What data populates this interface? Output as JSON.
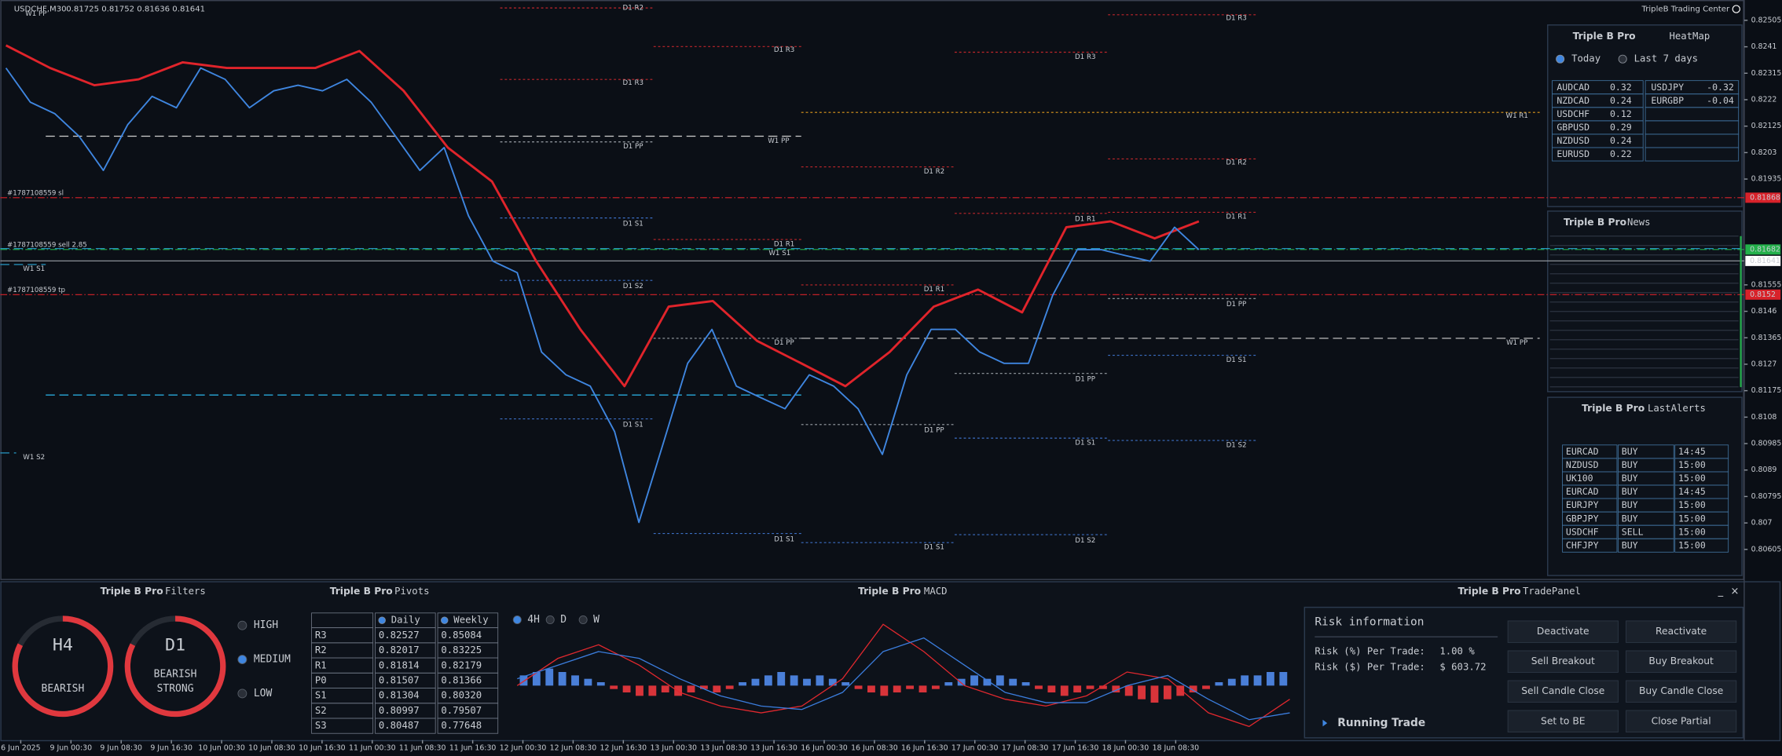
{
  "header": {
    "symbol": "USDCHF,M30",
    "ohlc": "0.81725 0.81752 0.81636 0.81641",
    "brand": "TripleB Trading Center"
  },
  "price_chart": {
    "type": "line",
    "ylim": [
      0.80499,
      0.82578
    ],
    "yticks": [
      0.82505,
      0.8241,
      0.82315,
      0.8222,
      0.82125,
      0.8203,
      0.81935,
      0.81555,
      0.8146,
      0.81365,
      0.8127,
      0.81175,
      0.8108,
      0.80985,
      0.8089,
      0.80795,
      0.807,
      0.80605
    ],
    "x_labels": [
      "6 Jun 2025",
      "9 Jun 00:30",
      "9 Jun 08:30",
      "9 Jun 16:30",
      "10 Jun 00:30",
      "10 Jun 08:30",
      "10 Jun 16:30",
      "11 Jun 00:30",
      "11 Jun 08:30",
      "11 Jun 16:30",
      "12 Jun 00:30",
      "12 Jun 08:30",
      "12 Jun 16:30",
      "13 Jun 00:30",
      "13 Jun 08:30",
      "13 Jun 16:30",
      "16 Jun 00:30",
      "16 Jun 08:30",
      "16 Jun 16:30",
      "17 Jun 00:30",
      "17 Jun 08:30",
      "17 Jun 16:30",
      "18 Jun 00:30",
      "18 Jun 08:30"
    ],
    "close": [
      0.82334,
      0.82211,
      0.8217,
      0.82089,
      0.81966,
      0.8213,
      0.82232,
      0.82191,
      0.82334,
      0.82293,
      0.82191,
      0.82252,
      0.82272,
      0.82252,
      0.82293,
      0.82211,
      0.82089,
      0.81966,
      0.82048,
      0.81803,
      0.8164,
      0.81599,
      0.81314,
      0.81232,
      0.81191,
      0.81028,
      0.80702,
      0.80987,
      0.81273,
      0.81395,
      0.81191,
      0.8115,
      0.8111,
      0.81232,
      0.81191,
      0.8111,
      0.80946,
      0.81232,
      0.81395,
      0.81395,
      0.81314,
      0.81273,
      0.81273,
      0.81518,
      0.81681,
      0.81681,
      0.8166,
      0.8164,
      0.81762,
      0.81681
    ],
    "close_color": "#3f86e0",
    "ma": [
      0.82415,
      0.82334,
      0.82272,
      0.82293,
      0.82354,
      0.82334,
      0.82334,
      0.82334,
      0.82395,
      0.82252,
      0.82048,
      0.81926,
      0.8164,
      0.81395,
      0.81191,
      0.81477,
      0.81497,
      0.81354,
      0.81273,
      0.81191,
      0.81314,
      0.81477,
      0.81538,
      0.81456,
      0.81762,
      0.81783,
      0.81722,
      0.81783
    ],
    "ma_color": "#e0242b",
    "marked_prices": [
      {
        "value": 0.81868,
        "color": "#d8222a"
      },
      {
        "value": 0.81682,
        "color": "#23b04a"
      },
      {
        "value": 0.81641,
        "color": "#ffffff"
      },
      {
        "value": 0.8152,
        "color": "#d8222a"
      }
    ]
  },
  "orders": [
    "#1787108559 sl",
    "#1787108559 sell 2.85",
    "#1787108559 tp"
  ],
  "levels": [
    "W1 PP",
    "D1 R2",
    "D1 R3",
    "D1 R3",
    "D1 R3",
    "D1 R3",
    "W1 R1",
    "D1 R2",
    "D1 R2",
    "W1 PP",
    "D1 PP",
    "D1 S1",
    "D1 R1",
    "D1 R1",
    "D1 R1",
    "W1 S1",
    "W1 S1",
    "D1 S2",
    "D1 R1",
    "D1 PP",
    "D1 PP",
    "W1 PP",
    "D1 S1",
    "D1 PP",
    "D1 S1",
    "D1 PP",
    "D1 S1",
    "D1 S2",
    "W1 S2",
    "D1 S1",
    "D1 S2",
    "D1 S1"
  ],
  "heatmap": {
    "brand": "Triple B Pro",
    "title": "HeatMap",
    "tabs": [
      "Today",
      "Last 7 days"
    ],
    "left": [
      [
        "AUDCAD",
        "0.32"
      ],
      [
        "NZDCAD",
        "0.24"
      ],
      [
        "USDCHF",
        "0.12"
      ],
      [
        "GBPUSD",
        "0.29"
      ],
      [
        "NZDUSD",
        "0.24"
      ],
      [
        "EURUSD",
        "0.22"
      ]
    ],
    "right": [
      [
        "USDJPY",
        "-0.32"
      ],
      [
        "EURGBP",
        "-0.04"
      ]
    ]
  },
  "news": {
    "brand": "Triple B Pro",
    "title": "News"
  },
  "alerts": {
    "brand": "Triple B Pro",
    "title": "LastAlerts",
    "rows": [
      [
        "EURCAD",
        "BUY",
        "14:45"
      ],
      [
        "NZDUSD",
        "BUY",
        "15:00"
      ],
      [
        "UK100",
        "BUY",
        "15:00"
      ],
      [
        "EURCAD",
        "BUY",
        "14:45"
      ],
      [
        "EURJPY",
        "BUY",
        "15:00"
      ],
      [
        "GBPJPY",
        "BUY",
        "15:00"
      ],
      [
        "USDCHF",
        "SELL",
        "15:00"
      ],
      [
        "CHFJPY",
        "BUY",
        "15:00"
      ]
    ]
  },
  "filters": {
    "brand": "Triple B Pro",
    "title": "Filters",
    "gauges": [
      {
        "tf": "H4",
        "state": [
          "BEARISH"
        ]
      },
      {
        "tf": "D1",
        "state": [
          "BEARISH",
          "STRONG"
        ]
      }
    ],
    "levels": [
      "HIGH",
      "MEDIUM",
      "LOW"
    ]
  },
  "pivots": {
    "brand": "Triple B Pro",
    "title": "Pivots",
    "columns": [
      "Daily",
      "Weekly"
    ],
    "rows": [
      [
        "R3",
        "0.82527",
        "0.85084"
      ],
      [
        "R2",
        "0.82017",
        "0.83225"
      ],
      [
        "R1",
        "0.81814",
        "0.82179"
      ],
      [
        "P0",
        "0.81507",
        "0.81366"
      ],
      [
        "S1",
        "0.81304",
        "0.80320"
      ],
      [
        "S2",
        "0.80997",
        "0.79507"
      ],
      [
        "S3",
        "0.80487",
        "0.77648"
      ]
    ]
  },
  "macd": {
    "brand": "Triple B Pro",
    "title": "MACD",
    "timeframes": [
      "4H",
      "D",
      "W"
    ],
    "histogram": [
      3,
      4,
      5,
      4,
      3,
      2,
      1,
      -1,
      -2,
      -3,
      -3,
      -2,
      -3,
      -2,
      -1,
      -2,
      -1,
      1,
      2,
      3,
      4,
      3,
      2,
      3,
      2,
      1,
      -1,
      -2,
      -3,
      -2,
      -1,
      -2,
      -1,
      1,
      2,
      3,
      2,
      3,
      2,
      1,
      -1,
      -2,
      -3,
      -2,
      -1,
      -1,
      -2,
      -3,
      -4,
      -5,
      -4,
      -3,
      -2,
      -1,
      1,
      2,
      3,
      3,
      4,
      4
    ],
    "lines": [
      {
        "color": "#e0282e",
        "values": [
          0,
          8,
          12,
          6,
          -2,
          -6,
          -8,
          -6,
          2,
          18,
          10,
          0,
          -4,
          -6,
          -3,
          4,
          2,
          -8,
          -12,
          -4
        ]
      },
      {
        "color": "#3b7ddd",
        "values": [
          2,
          6,
          10,
          8,
          2,
          -3,
          -6,
          -7,
          -2,
          10,
          14,
          6,
          -2,
          -5,
          -5,
          0,
          3,
          -4,
          -10,
          -8
        ]
      }
    ]
  },
  "trade": {
    "brand": "Triple B Pro",
    "title": "TradePanel",
    "risk_title": "Risk information",
    "risk": [
      [
        "Risk (%) Per Trade:",
        "1.00 %"
      ],
      [
        "Risk ($) Per Trade:",
        "$ 603.72"
      ]
    ],
    "running": "Running Trade",
    "buttons": [
      "Deactivate",
      "Reactivate",
      "Sell Breakout",
      "Buy Breakout",
      "Sell Candle Close",
      "Buy Candle Close",
      "Set to BE",
      "Close Partial"
    ],
    "controls": [
      "_",
      "×"
    ]
  }
}
